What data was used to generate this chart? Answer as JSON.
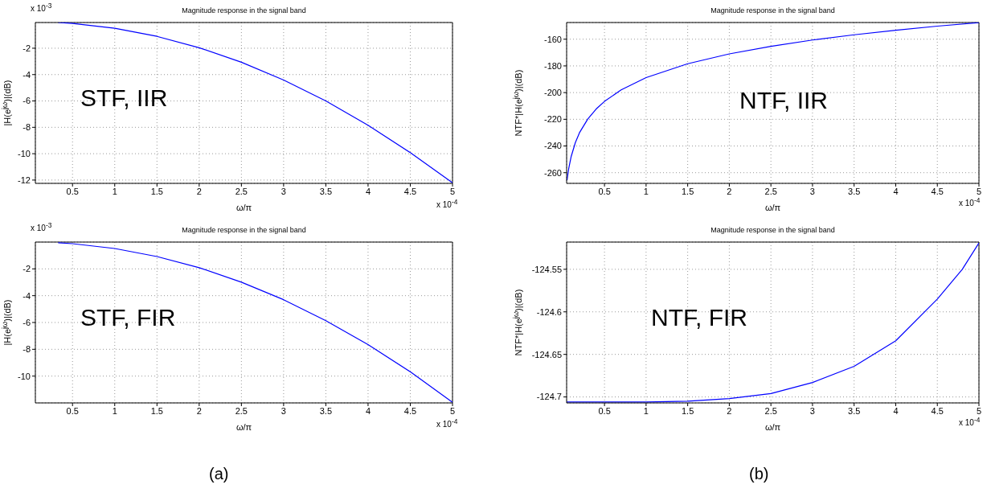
{
  "chart_data": [
    {
      "type": "line",
      "title": "Magnitude response in the signal band",
      "xlabel": "ω/π",
      "ylabel": "|H(e$^{jω}$)|(dB)",
      "annotations": [
        "x 10$^{-3}$",
        "x 10$^{-4}$",
        "STF, IIR"
      ],
      "x": [
        0.33,
        0.5,
        1,
        1.5,
        2,
        2.5,
        3,
        3.5,
        4,
        4.5,
        5
      ],
      "series": [
        {
          "color": "#0000ff",
          "values": [
            -0.05,
            -0.12,
            -0.49,
            -1.1,
            -1.96,
            -3.06,
            -4.41,
            -6.0,
            -7.84,
            -9.92,
            -12.2
          ]
        }
      ],
      "xlim": [
        0.06,
        5
      ],
      "xticks": [
        0.5,
        1,
        1.5,
        2,
        2.5,
        3,
        3.5,
        4,
        4.5,
        5
      ],
      "ylim": [
        -12.25,
        -0.05
      ],
      "yticks": [
        -12,
        -10,
        -8,
        -6,
        -4,
        -2
      ],
      "grid": true,
      "marker": "none",
      "line_style": "solid"
    },
    {
      "type": "line",
      "title": "Magnitude response in the signal band",
      "xlabel": "ω/π",
      "ylabel": "NTF*|H(e$^{jω}$)|(dB)",
      "annotations": [
        "x 10$^{-4}$",
        "NTF, IIR"
      ],
      "x": [
        0.05,
        0.07,
        0.1,
        0.15,
        0.2,
        0.3,
        0.4,
        0.5,
        0.7,
        1,
        1.5,
        2,
        2.5,
        3,
        3.5,
        4,
        4.5,
        5
      ],
      "series": [
        {
          "color": "#0000ff",
          "values": [
            -265.6,
            -257,
            -247.8,
            -237.4,
            -230,
            -219.7,
            -212.3,
            -206.6,
            -198,
            -188.8,
            -178.4,
            -171,
            -165.3,
            -160.6,
            -156.7,
            -153.3,
            -150.2,
            -147.6
          ]
        }
      ],
      "xlim": [
        0.045,
        5
      ],
      "xticks": [
        0.5,
        1,
        1.5,
        2,
        2.5,
        3,
        3.5,
        4,
        4.5,
        5
      ],
      "ylim": [
        -268,
        -147.5
      ],
      "yticks": [
        -260,
        -240,
        -220,
        -200,
        -180,
        -160
      ],
      "grid": true,
      "marker": "none",
      "line_style": "solid"
    },
    {
      "type": "line",
      "title": "Magnitude response in the signal band",
      "xlabel": "ω/π",
      "ylabel": "|H(e$^{jω}$)|(dB)",
      "annotations": [
        "x 10$^{-3}$",
        "x 10$^{-4}$",
        "STF, FIR",
        "(a)"
      ],
      "x": [
        0.33,
        0.5,
        1,
        1.5,
        2,
        2.5,
        3,
        3.5,
        4,
        4.5,
        5
      ],
      "series": [
        {
          "color": "#0000ff",
          "values": [
            -0.05,
            -0.12,
            -0.48,
            -1.08,
            -1.91,
            -2.99,
            -4.3,
            -5.86,
            -7.65,
            -9.68,
            -11.95
          ]
        }
      ],
      "xlim": [
        0.06,
        5
      ],
      "xticks": [
        0.5,
        1,
        1.5,
        2,
        2.5,
        3,
        3.5,
        4,
        4.5,
        5
      ],
      "ylim": [
        -12,
        0
      ],
      "yticks": [
        -10,
        -8,
        -6,
        -4,
        -2
      ],
      "grid": true,
      "marker": "none",
      "line_style": "solid"
    },
    {
      "type": "line",
      "title": "Magnitude response in the signal band",
      "xlabel": "ω/π",
      "ylabel": "NTF*|H(e$^{jω}$)|(dB)",
      "annotations": [
        "x 10$^{-4}$",
        "NTF, FIR",
        "(b)"
      ],
      "x": [
        0.045,
        1,
        1.5,
        2,
        2.5,
        3,
        3.5,
        4,
        4.5,
        4.8,
        5
      ],
      "series": [
        {
          "color": "#0000ff",
          "values": [
            -124.706,
            -124.706,
            -124.705,
            -124.702,
            -124.696,
            -124.683,
            -124.664,
            -124.634,
            -124.585,
            -124.55,
            -124.519
          ]
        }
      ],
      "xlim": [
        0.045,
        5
      ],
      "xticks": [
        0.5,
        1,
        1.5,
        2,
        2.5,
        3,
        3.5,
        4,
        4.5,
        5
      ],
      "ylim": [
        -124.707,
        -124.518
      ],
      "yticks": [
        -124.7,
        -124.65,
        -124.6,
        -124.55
      ],
      "grid": true,
      "marker": "none",
      "line_style": "solid"
    }
  ]
}
